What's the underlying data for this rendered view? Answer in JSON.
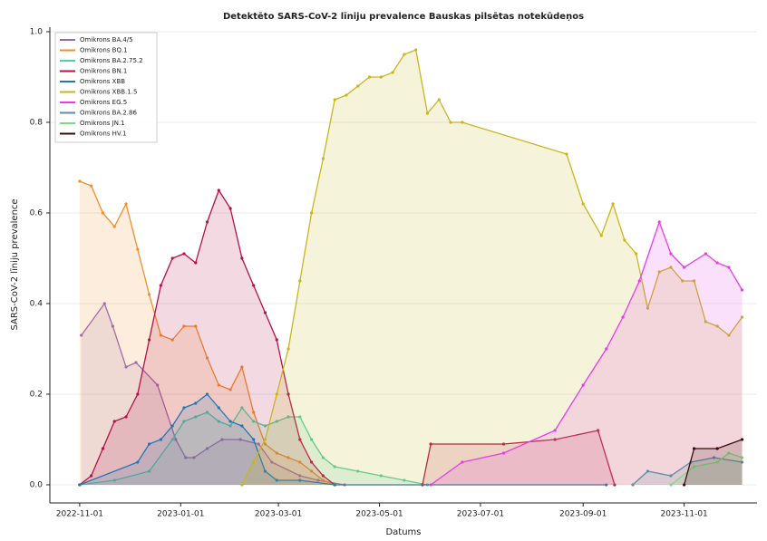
{
  "chart_data": {
    "type": "line",
    "title": "Detektēto SARS-CoV-2 līniju prevalence Bauskas pilsētas notekūdeņos",
    "x_label": "Datums",
    "y_label": "SARS-CoV-2 līniju prevalence",
    "xlim": [
      "2022-10-14",
      "2023-12-15"
    ],
    "xticks": [
      "2022-11-01",
      "2023-01-01",
      "2023-03-01",
      "2023-05-01",
      "2023-07-01",
      "2023-09-01",
      "2023-11-01"
    ],
    "ylim": [
      -0.04,
      1.01
    ],
    "yticks": [
      {
        "value": 0,
        "label": "0.0"
      },
      {
        "value": 0.2,
        "label": "0.2"
      },
      {
        "value": 0.4,
        "label": "0.4"
      },
      {
        "value": 0.6,
        "label": "0.6"
      },
      {
        "value": 0.8,
        "label": "0.8"
      },
      {
        "value": 1,
        "label": "1.0"
      }
    ],
    "grid": true,
    "legend": "upper left",
    "series": [
      {
        "name": "Omikrons BA.4/5",
        "color": "#9467bd",
        "x": [
          "2022-11-02",
          "2022-11-16",
          "2022-11-21",
          "2022-11-29",
          "2022-12-05",
          "2022-12-18",
          "2022-12-29",
          "2023-01-04",
          "2023-01-09",
          "2023-01-17",
          "2023-01-26",
          "2023-02-06",
          "2023-02-17",
          "2023-02-25",
          "2023-03-14",
          "2023-03-25",
          "2023-04-10"
        ],
        "values": [
          0.33,
          0.4,
          0.35,
          0.26,
          0.27,
          0.22,
          0.1,
          0.06,
          0.06,
          0.08,
          0.1,
          0.1,
          0.09,
          0.05,
          0.02,
          0.01,
          0.0
        ]
      },
      {
        "name": "Omikrons BQ.1",
        "color": "#f28e2b",
        "x": [
          "2022-11-01",
          "2022-11-08",
          "2022-11-15",
          "2022-11-22",
          "2022-11-29",
          "2022-12-06",
          "2022-12-13",
          "2022-12-20",
          "2022-12-27",
          "2023-01-03",
          "2023-01-10",
          "2023-01-17",
          "2023-01-24",
          "2023-01-31",
          "2023-02-07",
          "2023-02-14",
          "2023-02-21",
          "2023-02-28",
          "2023-03-07",
          "2023-03-14",
          "2023-03-21",
          "2023-03-28",
          "2023-04-04"
        ],
        "values": [
          0.67,
          0.66,
          0.6,
          0.57,
          0.62,
          0.52,
          0.42,
          0.33,
          0.32,
          0.35,
          0.35,
          0.28,
          0.22,
          0.21,
          0.26,
          0.16,
          0.09,
          0.07,
          0.06,
          0.05,
          0.03,
          0.01,
          0.0
        ]
      },
      {
        "name": "Omikrons BA.2.75.2",
        "color": "#4fd1a5",
        "x": [
          "2022-11-01",
          "2022-11-22",
          "2022-12-13",
          "2022-12-27",
          "2023-01-03",
          "2023-01-10",
          "2023-01-17",
          "2023-01-24",
          "2023-01-31",
          "2023-02-07",
          "2023-02-14",
          "2023-02-21",
          "2023-02-28",
          "2023-03-07",
          "2023-03-14",
          "2023-03-21",
          "2023-03-28",
          "2023-04-04",
          "2023-04-18",
          "2023-05-02",
          "2023-05-16",
          "2023-05-30"
        ],
        "values": [
          0.0,
          0.01,
          0.03,
          0.1,
          0.14,
          0.15,
          0.16,
          0.14,
          0.13,
          0.17,
          0.14,
          0.13,
          0.14,
          0.15,
          0.15,
          0.1,
          0.06,
          0.04,
          0.03,
          0.02,
          0.01,
          0.0
        ]
      },
      {
        "name": "Omikrons BN.1",
        "color": "#b5124a",
        "x": [
          "2022-11-01",
          "2022-11-08",
          "2022-11-15",
          "2022-11-22",
          "2022-11-29",
          "2022-12-06",
          "2022-12-13",
          "2022-12-20",
          "2022-12-27",
          "2023-01-03",
          "2023-01-10",
          "2023-01-17",
          "2023-01-24",
          "2023-01-31",
          "2023-02-07",
          "2023-02-14",
          "2023-02-21",
          "2023-02-28",
          "2023-03-07",
          "2023-03-14",
          "2023-03-21",
          "2023-03-28",
          "2023-04-04",
          null,
          "2023-05-27",
          "2023-06-01",
          "2023-07-15",
          "2023-08-15",
          "2023-09-10",
          "2023-09-20"
        ],
        "values": [
          0.0,
          0.02,
          0.08,
          0.14,
          0.15,
          0.2,
          0.32,
          0.44,
          0.5,
          0.51,
          0.49,
          0.58,
          0.65,
          0.61,
          0.5,
          0.44,
          0.38,
          0.32,
          0.2,
          0.1,
          0.05,
          0.02,
          0.0,
          null,
          0.0,
          0.09,
          0.09,
          0.1,
          0.12,
          0.0
        ]
      },
      {
        "name": "Omikrons XBB",
        "color": "#1f77b4",
        "x": [
          "2022-11-01",
          "2022-12-06",
          "2022-12-13",
          "2022-12-20",
          "2022-12-27",
          "2023-01-03",
          "2023-01-10",
          "2023-01-17",
          "2023-01-24",
          "2023-01-31",
          "2023-02-07",
          "2023-02-14",
          "2023-02-21",
          "2023-02-28",
          "2023-03-14",
          "2023-04-04",
          "2023-09-15"
        ],
        "values": [
          0.0,
          0.05,
          0.09,
          0.1,
          0.13,
          0.17,
          0.18,
          0.2,
          0.17,
          0.14,
          0.13,
          0.1,
          0.03,
          0.01,
          0.01,
          0.0,
          0.0
        ]
      },
      {
        "name": "Omikrons XBB.1.5",
        "color": "#c9b61e",
        "x": [
          "2023-02-07",
          "2023-02-14",
          "2023-02-21",
          "2023-02-28",
          "2023-03-07",
          "2023-03-14",
          "2023-03-21",
          "2023-03-28",
          "2023-04-04",
          "2023-04-11",
          "2023-04-18",
          "2023-04-25",
          "2023-05-02",
          "2023-05-09",
          "2023-05-16",
          "2023-05-23",
          "2023-05-30",
          "2023-06-06",
          "2023-06-13",
          "2023-06-20",
          "2023-08-22",
          "2023-09-01",
          "2023-09-12",
          "2023-09-19",
          "2023-09-26",
          "2023-10-03",
          "2023-10-10",
          "2023-10-17",
          "2023-10-24",
          "2023-10-31",
          "2023-11-07",
          "2023-11-14",
          "2023-11-21",
          "2023-11-28",
          "2023-12-06"
        ],
        "values": [
          0.0,
          0.05,
          0.1,
          0.2,
          0.3,
          0.45,
          0.6,
          0.72,
          0.85,
          0.86,
          0.88,
          0.9,
          0.9,
          0.91,
          0.95,
          0.96,
          0.82,
          0.85,
          0.8,
          0.8,
          0.73,
          0.62,
          0.55,
          0.62,
          0.54,
          0.51,
          0.39,
          0.47,
          0.48,
          0.45,
          0.45,
          0.36,
          0.35,
          0.33,
          0.37
        ]
      },
      {
        "name": "Omikrons EG.5",
        "color": "#e83ee8",
        "x": [
          "2023-06-01",
          "2023-06-20",
          "2023-07-15",
          "2023-08-15",
          "2023-09-01",
          "2023-09-15",
          "2023-09-25",
          "2023-10-05",
          "2023-10-17",
          "2023-10-24",
          "2023-11-01",
          "2023-11-14",
          "2023-11-21",
          "2023-11-28",
          "2023-12-06"
        ],
        "values": [
          0.0,
          0.05,
          0.07,
          0.12,
          0.22,
          0.3,
          0.37,
          0.45,
          0.58,
          0.51,
          0.48,
          0.51,
          0.49,
          0.48,
          0.43
        ]
      },
      {
        "name": "Omikrons BA.2.86",
        "color": "#5f8ea0",
        "x": [
          "2023-10-01",
          "2023-10-10",
          "2023-10-24",
          "2023-11-05",
          "2023-11-19",
          "2023-12-06"
        ],
        "values": [
          0.0,
          0.03,
          0.02,
          0.05,
          0.06,
          0.05
        ]
      },
      {
        "name": "Omikrons JN.1",
        "color": "#7fdc7f",
        "x": [
          "2023-10-24",
          "2023-11-07",
          "2023-11-21",
          "2023-11-28",
          "2023-12-06"
        ],
        "values": [
          0.0,
          0.04,
          0.05,
          0.07,
          0.06
        ]
      },
      {
        "name": "Omikrons HV.1",
        "color": "#3a0d0d",
        "x": [
          "2023-11-01",
          "2023-11-07",
          "2023-11-21",
          "2023-12-06"
        ],
        "values": [
          0.0,
          0.08,
          0.08,
          0.1
        ]
      }
    ]
  }
}
